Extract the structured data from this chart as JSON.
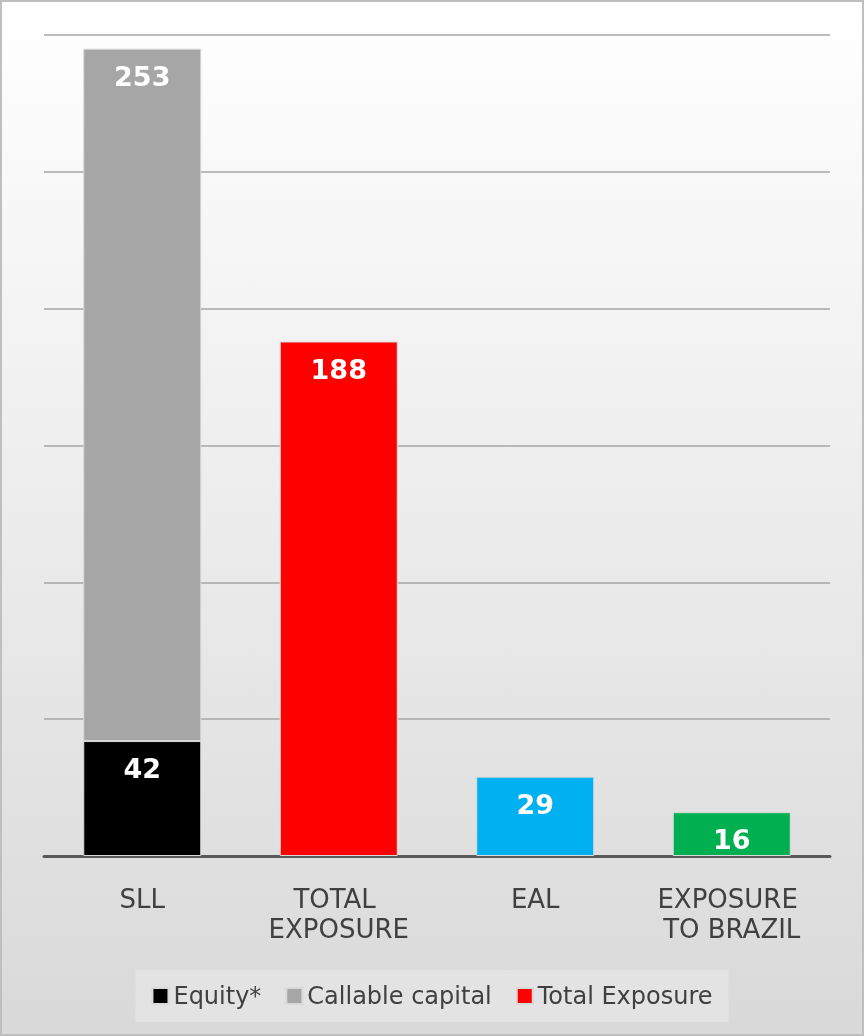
{
  "chart_data": {
    "type": "bar",
    "stacked": true,
    "categories": [
      "SLL",
      "TOTAL EXPOSURE",
      "EAL",
      "EXPOSURE TO BRAZIL"
    ],
    "series": [
      {
        "name": "Equity*",
        "color": "#000000",
        "values": [
          42,
          null,
          null,
          null
        ]
      },
      {
        "name": "Callable capital",
        "color": "#a6a6a6",
        "values": [
          253,
          null,
          null,
          null
        ]
      },
      {
        "name": "Total Exposure",
        "color": "#ff0000",
        "colors": [
          null,
          "#ff0000",
          "#00b0f0",
          "#00b050"
        ],
        "values": [
          null,
          188,
          29,
          16
        ]
      }
    ],
    "ylim": [
      0,
      300
    ],
    "yticks": [
      0,
      50,
      100,
      150,
      200,
      250,
      300
    ],
    "tick_labels": "x",
    "grid": "y",
    "legend": "bottom",
    "data_labels": true
  }
}
